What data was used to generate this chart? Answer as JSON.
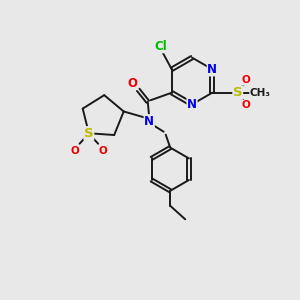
{
  "bg_color": "#e8e8e8",
  "bond_color": "#1a1a1a",
  "N_color": "#0000ee",
  "O_color": "#ee0000",
  "S_color": "#bbbb00",
  "Cl_color": "#00bb00",
  "figsize": [
    3.0,
    3.0
  ],
  "dpi": 100,
  "xlim": [
    0,
    10
  ],
  "ylim": [
    0,
    10
  ],
  "lw": 1.4,
  "fs": 8.5
}
